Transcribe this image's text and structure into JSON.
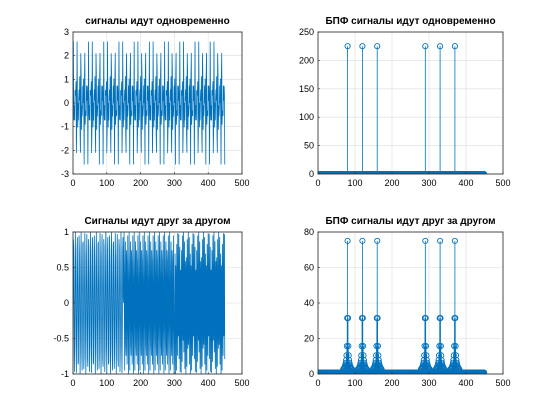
{
  "chart_data": [
    {
      "type": "line",
      "title": "сигналы идут одновременно",
      "xlim": [
        0,
        500
      ],
      "ylim": [
        -3,
        3
      ],
      "xticks": [
        0,
        100,
        200,
        300,
        400,
        500
      ],
      "yticks": [
        -3,
        -2,
        -1,
        0,
        1,
        2,
        3
      ],
      "grid": true,
      "color": "#0072BD",
      "n_points": 450,
      "description_series": {
        "components": [
          {
            "amplitude": 1,
            "cycles_per_window": 80
          },
          {
            "amplitude": 1,
            "cycles_per_window": 120
          },
          {
            "amplitude": 1,
            "cycles_per_window": 160
          }
        ],
        "y_max": 2.6,
        "y_min": -2.6
      }
    },
    {
      "type": "stem",
      "title": "БПФ сигналы идут одновременно",
      "xlim": [
        0,
        500
      ],
      "ylim": [
        0,
        250
      ],
      "xticks": [
        0,
        100,
        200,
        300,
        400,
        500
      ],
      "yticks": [
        0,
        50,
        100,
        150,
        200,
        250
      ],
      "grid": true,
      "color": "#0072BD",
      "n_points": 450,
      "peaks": [
        {
          "x": 80,
          "y": 225
        },
        {
          "x": 120,
          "y": 225
        },
        {
          "x": 160,
          "y": 225
        },
        {
          "x": 290,
          "y": 225
        },
        {
          "x": 330,
          "y": 225
        },
        {
          "x": 370,
          "y": 225
        }
      ]
    },
    {
      "type": "line",
      "title": "Сигналы идут друг за другом",
      "xlim": [
        0,
        500
      ],
      "ylim": [
        -1,
        1
      ],
      "xticks": [
        0,
        100,
        200,
        300,
        400,
        500
      ],
      "yticks": [
        -1,
        -0.5,
        0,
        0.5,
        1
      ],
      "grid": true,
      "color": "#0072BD",
      "n_points": 450,
      "segments": [
        {
          "x_start": 0,
          "x_end": 150,
          "cycles_per_window": 80
        },
        {
          "x_start": 150,
          "x_end": 300,
          "cycles_per_window": 120
        },
        {
          "x_start": 300,
          "x_end": 450,
          "cycles_per_window": 160
        }
      ]
    },
    {
      "type": "stem",
      "title": "БПФ сигналы идут друг за другом",
      "xlim": [
        0,
        500
      ],
      "ylim": [
        0,
        80
      ],
      "xticks": [
        0,
        100,
        200,
        300,
        400,
        500
      ],
      "yticks": [
        0,
        20,
        40,
        60,
        80
      ],
      "grid": true,
      "color": "#0072BD",
      "n_points": 450,
      "peaks": [
        {
          "x": 80,
          "y": 75
        },
        {
          "x": 120,
          "y": 75
        },
        {
          "x": 160,
          "y": 75
        },
        {
          "x": 290,
          "y": 75
        },
        {
          "x": 330,
          "y": 75
        },
        {
          "x": 370,
          "y": 75
        }
      ]
    }
  ]
}
